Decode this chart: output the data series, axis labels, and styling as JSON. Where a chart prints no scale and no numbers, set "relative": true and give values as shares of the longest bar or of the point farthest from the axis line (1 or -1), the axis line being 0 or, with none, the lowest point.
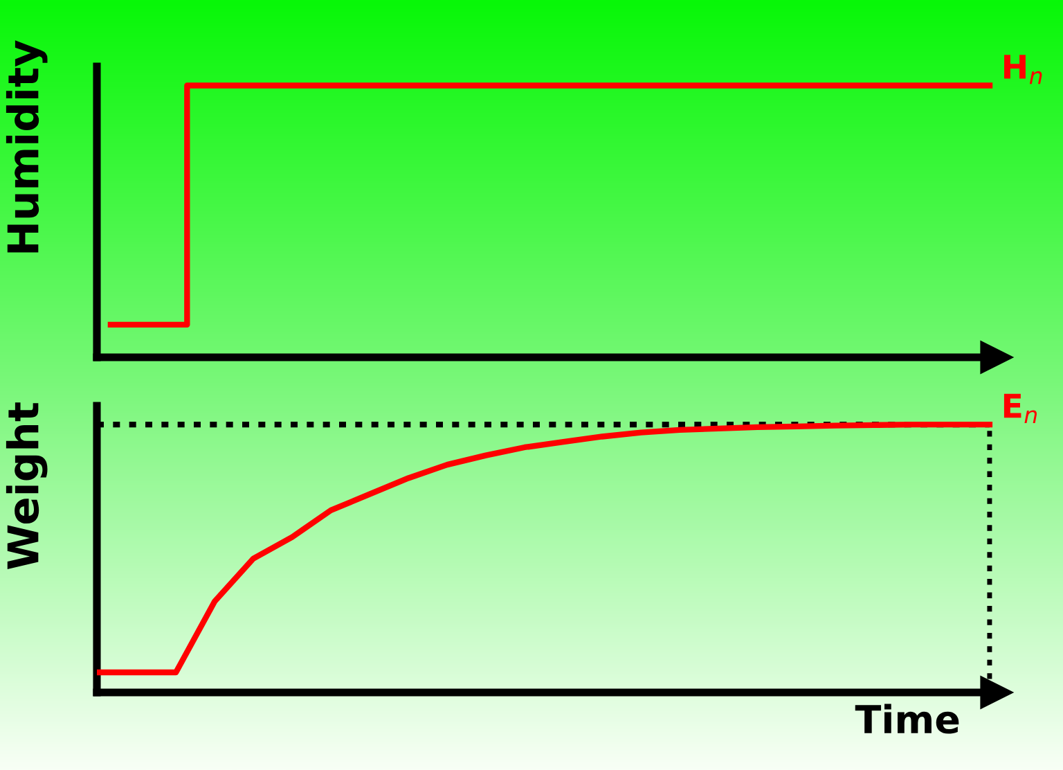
{
  "chart_data": [
    {
      "type": "step",
      "relative": true,
      "ylabel": "Humidity",
      "categories": [
        null,
        null,
        null,
        null,
        null,
        null,
        null,
        null,
        null,
        null,
        null,
        null,
        null,
        null,
        null,
        null,
        null,
        null,
        null,
        null,
        null,
        null,
        null,
        null
      ],
      "series": [
        {
          "color": "#ff0000",
          "values": [
            0.12,
            0.12,
            1,
            1,
            1,
            1,
            1,
            1,
            1,
            1,
            1,
            1,
            1,
            1,
            1,
            1,
            1,
            1,
            1,
            1,
            1,
            1,
            1,
            1
          ]
        }
      ],
      "annotations": [
        "H$_{n}$"
      ],
      "grid": false,
      "legend": false
    },
    {
      "type": "line",
      "relative": true,
      "ylabel": "Weight",
      "xlabel": "Time",
      "categories": [
        null,
        null,
        null,
        null,
        null,
        null,
        null,
        null,
        null,
        null,
        null,
        null,
        null,
        null,
        null,
        null,
        null,
        null,
        null,
        null,
        null,
        null,
        null,
        null
      ],
      "series": [
        {
          "color": "#ff0000",
          "values": [
            0.075,
            0.075,
            0.075,
            0.34,
            0.5,
            0.58,
            0.68,
            0.74,
            0.8,
            0.85,
            0.885,
            0.915,
            0.935,
            0.955,
            0.97,
            0.98,
            0.985,
            0.99,
            0.993,
            0.996,
            0.998,
            1,
            1,
            1
          ]
        }
      ],
      "ref_lines": [
        {
          "axis": "y",
          "value": 1,
          "color": "#000000",
          "line_style": "dotted"
        }
      ],
      "annotations": [
        "E$_{n}$"
      ],
      "grid": false,
      "legend": false
    }
  ]
}
